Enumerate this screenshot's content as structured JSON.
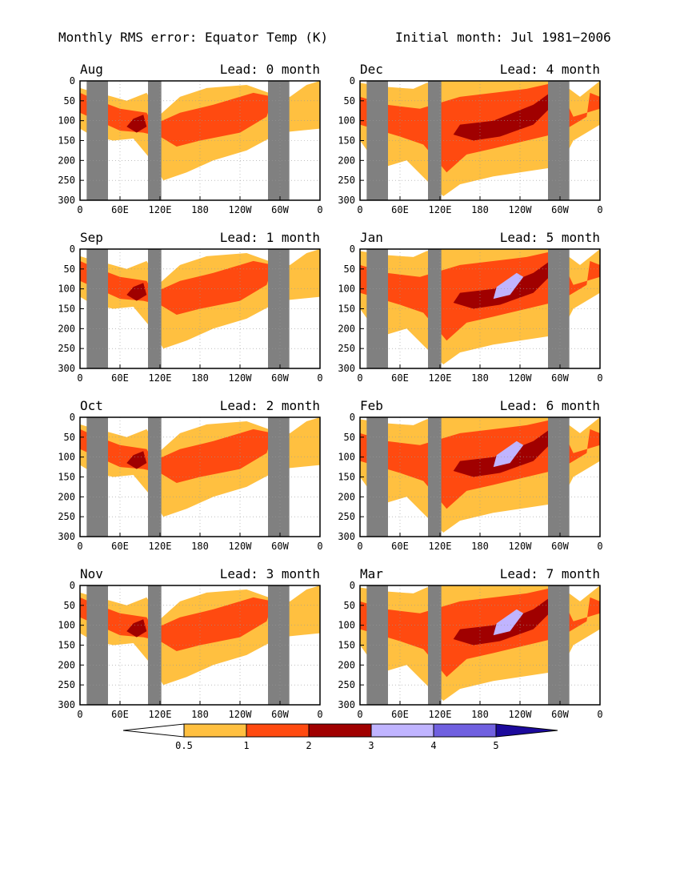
{
  "title_left": "Monthly RMS error: Equator Temp (K)",
  "title_right": "Initial month: Jul 1981−2006",
  "colors": {
    "c05": "#ffc040",
    "c1": "#ff4a10",
    "c2": "#a00000",
    "c3": "#c0b4ff",
    "c4": "#7060e0",
    "c5": "#1c0a9c",
    "land": "#808080"
  },
  "chart_data": {
    "type": "contour",
    "x_ticks": [
      "0",
      "60E",
      "120E",
      "180",
      "120W",
      "60W",
      "0"
    ],
    "y_ticks": [
      "0",
      "50",
      "100",
      "150",
      "200",
      "250",
      "300"
    ],
    "xlim_deg_east": [
      0,
      360
    ],
    "ylim_depth": [
      300,
      0
    ],
    "grid": true,
    "land_masks_deg_east": [
      [
        10,
        42
      ],
      [
        102,
        122
      ],
      [
        282,
        314
      ]
    ],
    "colorbar": {
      "labels": [
        "0.5",
        "1",
        "2",
        "3",
        "4",
        "5"
      ],
      "levels": [
        0.5,
        1,
        2,
        3,
        4,
        5
      ]
    },
    "panels": [
      {
        "month": "Aug",
        "lead": "Lead: 0 month",
        "max_level": 2
      },
      {
        "month": "Dec",
        "lead": "Lead: 4 month",
        "max_level": 2
      },
      {
        "month": "Sep",
        "lead": "Lead: 1 month",
        "max_level": 2
      },
      {
        "month": "Jan",
        "lead": "Lead: 5 month",
        "max_level": 3
      },
      {
        "month": "Oct",
        "lead": "Lead: 2 month",
        "max_level": 2
      },
      {
        "month": "Feb",
        "lead": "Lead: 6 month",
        "max_level": 3
      },
      {
        "month": "Nov",
        "lead": "Lead: 3 month",
        "max_level": 2
      },
      {
        "month": "Mar",
        "lead": "Lead: 7 month",
        "max_level": 3
      }
    ]
  }
}
